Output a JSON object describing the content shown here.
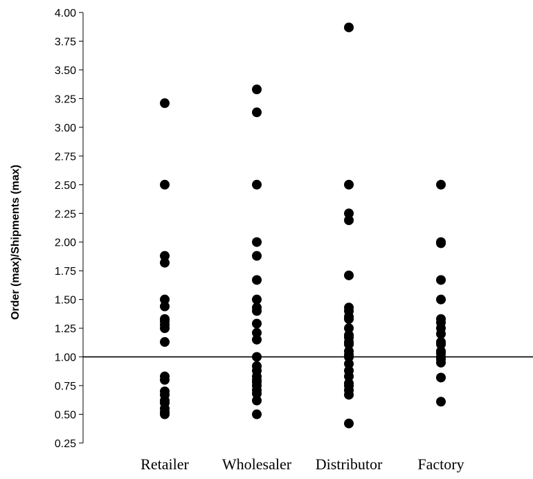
{
  "chart_data": {
    "type": "scatter",
    "title": "",
    "xlabel": "",
    "ylabel": "Order (max)/Shipments (max)",
    "categories": [
      "Retailer",
      "Wholesaler",
      "Distributor",
      "Factory"
    ],
    "ylim": [
      0.25,
      4.0
    ],
    "yticks": [
      "0.25",
      "0.50",
      "0.75",
      "1.00",
      "1.25",
      "1.50",
      "1.75",
      "2.00",
      "2.25",
      "2.50",
      "2.75",
      "3.00",
      "3.25",
      "3.50",
      "3.75",
      "4.00"
    ],
    "reference_line": 1.0,
    "grid": false,
    "legend": "none",
    "marker_color": "#000000",
    "series": [
      {
        "category": "Retailer",
        "values": [
          3.21,
          2.5,
          1.88,
          1.82,
          1.5,
          1.44,
          1.33,
          1.31,
          1.28,
          1.25,
          1.13,
          0.83,
          0.8,
          0.7,
          0.67,
          0.62,
          0.6,
          0.55,
          0.52,
          0.5
        ]
      },
      {
        "category": "Wholesaler",
        "values": [
          3.33,
          3.13,
          2.5,
          2.0,
          1.88,
          1.67,
          1.5,
          1.43,
          1.4,
          1.29,
          1.21,
          1.15,
          1.0,
          0.92,
          0.88,
          0.83,
          0.8,
          0.78,
          0.75,
          0.71,
          0.68,
          0.62,
          0.5
        ]
      },
      {
        "category": "Distributor",
        "values": [
          3.87,
          2.5,
          2.25,
          2.19,
          1.71,
          1.43,
          1.4,
          1.35,
          1.33,
          1.25,
          1.19,
          1.17,
          1.13,
          1.11,
          1.05,
          1.02,
          1.0,
          0.94,
          0.88,
          0.83,
          0.77,
          0.75,
          0.71,
          0.67,
          0.42
        ]
      },
      {
        "category": "Factory",
        "values": [
          2.5,
          2.0,
          1.99,
          1.67,
          1.5,
          1.33,
          1.3,
          1.25,
          1.2,
          1.13,
          1.11,
          1.05,
          1.03,
          1.0,
          0.98,
          0.95,
          0.82,
          0.61
        ]
      }
    ]
  }
}
